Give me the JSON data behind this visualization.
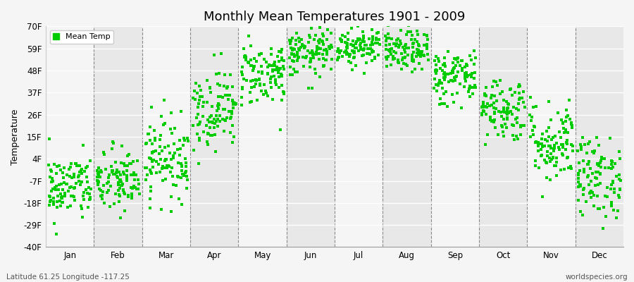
{
  "title": "Monthly Mean Temperatures 1901 - 2009",
  "ylabel": "Temperature",
  "yticks": [
    -40,
    -29,
    -18,
    -7,
    4,
    15,
    26,
    37,
    48,
    59,
    70
  ],
  "ytick_labels": [
    "-40F",
    "-29F",
    "-18F",
    "-7F",
    "4F",
    "15F",
    "26F",
    "37F",
    "48F",
    "59F",
    "70F"
  ],
  "ylim": [
    -40,
    70
  ],
  "months": [
    "Jan",
    "Feb",
    "Mar",
    "Apr",
    "May",
    "Jun",
    "Jul",
    "Aug",
    "Sep",
    "Oct",
    "Nov",
    "Dec"
  ],
  "dot_color": "#00cc00",
  "background_color": "#f5f5f5",
  "band_color_light": "#f5f5f5",
  "band_color_dark": "#e8e8e8",
  "subtitle_left": "Latitude 61.25 Longitude -117.25",
  "subtitle_right": "worldspecies.org",
  "legend_label": "Mean Temp",
  "monthly_mean_temps_F": [
    -13,
    -10,
    3,
    28,
    46,
    56,
    60,
    57,
    44,
    28,
    10,
    -8
  ],
  "monthly_spread_F": [
    8,
    8,
    10,
    10,
    8,
    6,
    5,
    5,
    7,
    8,
    10,
    10
  ],
  "monthly_trend_F": [
    0.05,
    0.05,
    0.03,
    0.02,
    0.01,
    0.01,
    0.01,
    0.01,
    0.02,
    0.02,
    0.04,
    0.05
  ],
  "n_years": 109,
  "seed": 42
}
